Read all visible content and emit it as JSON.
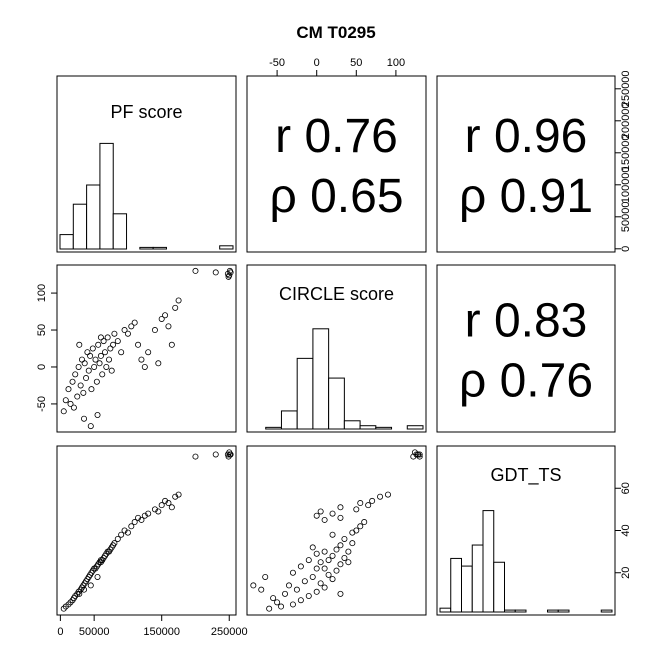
{
  "title": "CM T0295",
  "chart_data": {
    "type": "scatter",
    "title": "CM T0295",
    "variables": [
      "PF score",
      "CIRCLE score",
      "GDT_TS"
    ],
    "correlations": [
      {
        "pair": [
          "PF score",
          "CIRCLE score"
        ],
        "r_label": "r 0.76",
        "rho_label": "ρ 0.65",
        "r": 0.76,
        "rho": 0.65
      },
      {
        "pair": [
          "PF score",
          "GDT_TS"
        ],
        "r_label": "r 0.96",
        "rho_label": "ρ 0.91",
        "r": 0.96,
        "rho": 0.91
      },
      {
        "pair": [
          "CIRCLE score",
          "GDT_TS"
        ],
        "r_label": "r 0.83",
        "rho_label": "ρ 0.76",
        "r": 0.83,
        "rho": 0.76
      }
    ],
    "axes": {
      "PF score": {
        "range": [
          -5000,
          260000
        ],
        "ticks": [
          0,
          50000,
          150000,
          250000
        ],
        "tick_labels": [
          "0",
          "50000",
          "150000",
          "250000"
        ]
      },
      "PF score (right)": {
        "ticks": [
          0,
          50000,
          100000,
          150000,
          200000,
          250000
        ],
        "tick_labels": [
          "0",
          "50000",
          "100000",
          "150000",
          "200000",
          "250000"
        ]
      },
      "CIRCLE score": {
        "range": [
          -88,
          138
        ],
        "ticks": [
          -50,
          0,
          50,
          100
        ],
        "tick_labels": [
          "-50",
          "0",
          "50",
          "100"
        ]
      },
      "GDT_TS": {
        "range": [
          0,
          80
        ],
        "ticks": [
          20,
          40,
          60
        ],
        "tick_labels": [
          "20",
          "40",
          "60"
        ]
      },
      "GDT_TS (right)": {
        "range": [
          0,
          80
        ],
        "ticks": [
          20,
          40,
          60
        ],
        "tick_labels": [
          "20",
          "40",
          "60"
        ]
      }
    },
    "histograms": [
      {
        "variable": "PF score",
        "bin_edges": [
          0,
          20000,
          40000,
          60000,
          80000,
          100000,
          120000,
          140000,
          160000,
          180000,
          200000,
          220000,
          240000,
          260000
        ],
        "counts": [
          9,
          28,
          40,
          66,
          22,
          0,
          1,
          1,
          0,
          0,
          0,
          0,
          2
        ]
      },
      {
        "variable": "CIRCLE score",
        "bin_edges": [
          -90,
          -70,
          -50,
          -30,
          -10,
          10,
          30,
          50,
          70,
          90,
          110,
          130
        ],
        "counts": [
          0,
          1,
          11,
          43,
          61,
          31,
          5,
          2,
          1,
          0,
          2
        ]
      },
      {
        "variable": "GDT_TS",
        "bin_edges": [
          0,
          5,
          10,
          15,
          20,
          25,
          30,
          35,
          40,
          45,
          50,
          55,
          60,
          65,
          70,
          75,
          80
        ],
        "counts": [
          2,
          28,
          24,
          35,
          53,
          26,
          1,
          1,
          0,
          0,
          1,
          1,
          0,
          0,
          0,
          1
        ]
      }
    ],
    "scatter_points": [
      [
        5000,
        -60,
        3
      ],
      [
        8000,
        -45,
        4
      ],
      [
        12000,
        -30,
        5
      ],
      [
        15000,
        -50,
        6
      ],
      [
        18000,
        -20,
        7
      ],
      [
        20000,
        -55,
        8
      ],
      [
        22000,
        -10,
        9
      ],
      [
        25000,
        -40,
        10
      ],
      [
        27000,
        0,
        11
      ],
      [
        30000,
        -25,
        12
      ],
      [
        32000,
        10,
        13
      ],
      [
        34000,
        -35,
        14
      ],
      [
        36000,
        5,
        15
      ],
      [
        38000,
        -15,
        16
      ],
      [
        40000,
        20,
        17
      ],
      [
        42000,
        -5,
        18
      ],
      [
        44000,
        15,
        19
      ],
      [
        46000,
        -30,
        20
      ],
      [
        48000,
        25,
        21
      ],
      [
        50000,
        0,
        22
      ],
      [
        52000,
        10,
        22
      ],
      [
        54000,
        -20,
        23
      ],
      [
        56000,
        30,
        24
      ],
      [
        58000,
        5,
        25
      ],
      [
        60000,
        15,
        26
      ],
      [
        62000,
        -10,
        26
      ],
      [
        64000,
        35,
        27
      ],
      [
        66000,
        20,
        28
      ],
      [
        68000,
        0,
        29
      ],
      [
        70000,
        40,
        30
      ],
      [
        72000,
        10,
        30
      ],
      [
        74000,
        25,
        31
      ],
      [
        76000,
        -5,
        32
      ],
      [
        78000,
        30,
        33
      ],
      [
        80000,
        45,
        34
      ],
      [
        35000,
        -70,
        12
      ],
      [
        45000,
        -80,
        14
      ],
      [
        55000,
        -65,
        18
      ],
      [
        28000,
        30,
        10
      ],
      [
        60000,
        40,
        25
      ],
      [
        85000,
        35,
        36
      ],
      [
        90000,
        20,
        38
      ],
      [
        95000,
        50,
        40
      ],
      [
        100000,
        45,
        39
      ],
      [
        105000,
        55,
        42
      ],
      [
        110000,
        60,
        44
      ],
      [
        115000,
        30,
        46
      ],
      [
        120000,
        10,
        45
      ],
      [
        125000,
        0,
        47
      ],
      [
        130000,
        20,
        48
      ],
      [
        140000,
        50,
        50
      ],
      [
        150000,
        65,
        52
      ],
      [
        155000,
        70,
        54
      ],
      [
        160000,
        55,
        53
      ],
      [
        170000,
        80,
        56
      ],
      [
        175000,
        90,
        57
      ],
      [
        165000,
        30,
        51
      ],
      [
        145000,
        5,
        49
      ],
      [
        200000,
        130,
        75
      ],
      [
        230000,
        128,
        76
      ],
      [
        248000,
        126,
        76
      ],
      [
        250000,
        124,
        77
      ],
      [
        252000,
        128,
        76
      ],
      [
        251000,
        130,
        76
      ],
      [
        249000,
        122,
        75
      ]
    ]
  }
}
